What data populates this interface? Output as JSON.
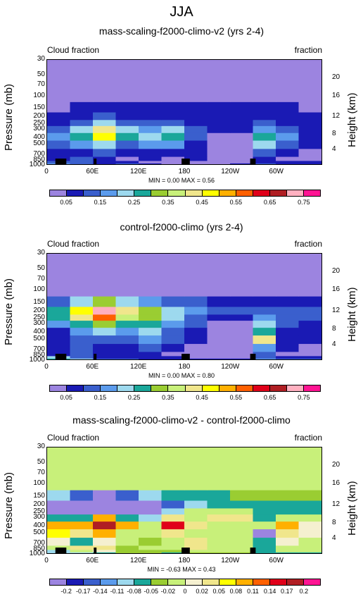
{
  "title": "JJA",
  "panels": [
    {
      "title": "mass-scaling-f2000-climo-v2 (yrs 2-4)",
      "left_label": "Cloud fraction",
      "right_label": "fraction",
      "minmax": "MIN =   0.00  MAX =   0.56",
      "colorbar_labels": [
        "0.05",
        "0.15",
        "0.25",
        "0.35",
        "0.45",
        "0.55",
        "0.65",
        "0.75"
      ]
    },
    {
      "title": "control-f2000-climo (yrs 2-4)",
      "left_label": "Cloud fraction",
      "right_label": "fraction",
      "minmax": "MIN =   0.00  MAX =   0.80",
      "colorbar_labels": [
        "0.05",
        "0.15",
        "0.25",
        "0.35",
        "0.45",
        "0.55",
        "0.65",
        "0.75"
      ]
    },
    {
      "title": "mass-scaling-f2000-climo-v2 - control-f2000-climo",
      "left_label": "Cloud fraction",
      "right_label": "fraction",
      "minmax": "MIN =  -0.63  MAX =   0.43",
      "colorbar_labels": [
        "-0.2",
        "-0.17",
        "-0.14",
        "-0.11",
        "-0.08",
        "-0.05",
        "-0.02",
        "0",
        "0.02",
        "0.05",
        "0.08",
        "0.11",
        "0.14",
        "0.17",
        "0.2"
      ]
    }
  ],
  "axes": {
    "ylabel_left": "Pressure (mb)",
    "ylabel_right": "Height (km)",
    "x_ticks": [
      "0",
      "60E",
      "120E",
      "180",
      "120W",
      "60W"
    ],
    "p_ticks": [
      "30",
      "50",
      "70",
      "100",
      "150",
      "200",
      "250",
      "300",
      "400",
      "500",
      "700",
      "850",
      "1000"
    ],
    "h_ticks": [
      "20",
      "16",
      "12",
      "8",
      "4"
    ]
  },
  "colors": {
    "seq": [
      "#9c84e0",
      "#1a1ab4",
      "#3a5fcd",
      "#5b9bec",
      "#9dd9ee",
      "#1aa79a",
      "#9acd32",
      "#c8f07a",
      "#f0e68c",
      "#ffff00",
      "#ffb000",
      "#ff6000",
      "#e0001a",
      "#b01e23",
      "#ffb0c0",
      "#ff1493"
    ],
    "diff": [
      "#9c84e0",
      "#1a1ab4",
      "#3a5fcd",
      "#5b9bec",
      "#9dd9ee",
      "#1aa79a",
      "#9acd32",
      "#c8f07a",
      "#f5f0d0",
      "#f0e68c",
      "#ffff00",
      "#ffb000",
      "#ff6000",
      "#e0001a",
      "#b01e23",
      "#ff1493"
    ]
  },
  "chart_data": [
    {
      "type": "heatmap",
      "title": "mass-scaling-f2000-climo-v2 (yrs 2-4)",
      "xlabel": "",
      "ylabel": "Pressure (mb)",
      "x": [
        0,
        30,
        60,
        90,
        120,
        150,
        180,
        210,
        240,
        270,
        300,
        330
      ],
      "p": [
        1000,
        925,
        850,
        700,
        500,
        400,
        300,
        250,
        200,
        150,
        100
      ],
      "values": [
        [
          0.2,
          0.15,
          0.1,
          0.12,
          0.08,
          0.05,
          0.05,
          0.05,
          0.08,
          0.15,
          0.1,
          0.1
        ],
        [
          0.15,
          0.15,
          0.1,
          0.08,
          0.05,
          0.05,
          0.05,
          0.05,
          0.05,
          0.1,
          0.1,
          0.1
        ],
        [
          0.1,
          0.12,
          0.1,
          0.05,
          0.1,
          0.05,
          0.1,
          0.05,
          0.05,
          0.1,
          0.05,
          0.05
        ],
        [
          0.1,
          0.1,
          0.12,
          0.1,
          0.1,
          0.1,
          0.08,
          0.05,
          0.05,
          0.15,
          0.1,
          0.05
        ],
        [
          0.15,
          0.2,
          0.25,
          0.15,
          0.2,
          0.2,
          0.1,
          0.05,
          0.05,
          0.25,
          0.15,
          0.1
        ],
        [
          0.2,
          0.3,
          0.5,
          0.3,
          0.25,
          0.3,
          0.15,
          0.05,
          0.05,
          0.3,
          0.2,
          0.1
        ],
        [
          0.15,
          0.25,
          0.45,
          0.25,
          0.2,
          0.25,
          0.15,
          0.1,
          0.1,
          0.2,
          0.15,
          0.1
        ],
        [
          0.1,
          0.15,
          0.25,
          0.15,
          0.15,
          0.15,
          0.1,
          0.1,
          0.1,
          0.15,
          0.1,
          0.1
        ],
        [
          0.08,
          0.1,
          0.15,
          0.1,
          0.1,
          0.1,
          0.1,
          0.1,
          0.1,
          0.1,
          0.1,
          0.08
        ],
        [
          0.05,
          0.08,
          0.1,
          0.08,
          0.08,
          0.08,
          0.08,
          0.08,
          0.08,
          0.08,
          0.08,
          0.05
        ],
        [
          0.02,
          0.02,
          0.02,
          0.02,
          0.02,
          0.02,
          0.02,
          0.02,
          0.02,
          0.02,
          0.02,
          0.02
        ]
      ],
      "zlim": [
        0,
        0.56
      ]
    },
    {
      "type": "heatmap",
      "title": "control-f2000-climo (yrs 2-4)",
      "xlabel": "",
      "ylabel": "Pressure (mb)",
      "x": [
        0,
        30,
        60,
        90,
        120,
        150,
        180,
        210,
        240,
        270,
        300,
        330
      ],
      "p": [
        1000,
        925,
        850,
        700,
        500,
        400,
        300,
        250,
        200,
        150,
        100
      ],
      "values": [
        [
          0.3,
          0.25,
          0.15,
          0.15,
          0.1,
          0.1,
          0.08,
          0.08,
          0.1,
          0.2,
          0.15,
          0.15
        ],
        [
          0.25,
          0.15,
          0.1,
          0.1,
          0.08,
          0.08,
          0.05,
          0.05,
          0.05,
          0.15,
          0.1,
          0.1
        ],
        [
          0.1,
          0.15,
          0.08,
          0.08,
          0.1,
          0.05,
          0.05,
          0.05,
          0.05,
          0.15,
          0.05,
          0.05
        ],
        [
          0.08,
          0.15,
          0.1,
          0.1,
          0.12,
          0.1,
          0.05,
          0.05,
          0.05,
          0.2,
          0.08,
          0.05
        ],
        [
          0.08,
          0.15,
          0.15,
          0.15,
          0.2,
          0.15,
          0.1,
          0.05,
          0.05,
          0.45,
          0.1,
          0.08
        ],
        [
          0.1,
          0.2,
          0.25,
          0.2,
          0.25,
          0.15,
          0.1,
          0.05,
          0.05,
          0.3,
          0.1,
          0.08
        ],
        [
          0.2,
          0.3,
          0.35,
          0.3,
          0.3,
          0.2,
          0.15,
          0.05,
          0.05,
          0.25,
          0.15,
          0.1
        ],
        [
          0.3,
          0.45,
          0.6,
          0.4,
          0.35,
          0.25,
          0.15,
          0.1,
          0.1,
          0.2,
          0.15,
          0.15
        ],
        [
          0.3,
          0.5,
          0.75,
          0.45,
          0.35,
          0.25,
          0.2,
          0.15,
          0.15,
          0.15,
          0.15,
          0.15
        ],
        [
          0.15,
          0.25,
          0.35,
          0.25,
          0.2,
          0.15,
          0.15,
          0.1,
          0.1,
          0.1,
          0.1,
          0.1
        ],
        [
          0.02,
          0.02,
          0.02,
          0.02,
          0.02,
          0.02,
          0.02,
          0.02,
          0.02,
          0.02,
          0.02,
          0.02
        ]
      ],
      "zlim": [
        0,
        0.8
      ]
    },
    {
      "type": "heatmap",
      "title": "mass-scaling-f2000-climo-v2 - control-f2000-climo",
      "xlabel": "",
      "ylabel": "Pressure (mb)",
      "x": [
        0,
        30,
        60,
        90,
        120,
        150,
        180,
        210,
        240,
        270,
        300,
        330
      ],
      "p": [
        1000,
        925,
        850,
        700,
        500,
        400,
        300,
        250,
        200,
        150,
        100
      ],
      "values": [
        [
          -0.1,
          -0.1,
          -0.05,
          -0.03,
          -0.02,
          -0.05,
          -0.03,
          -0.03,
          -0.02,
          -0.05,
          -0.05,
          -0.05
        ],
        [
          -0.1,
          0.0,
          0.02,
          -0.02,
          -0.03,
          -0.03,
          0.0,
          0.0,
          0.0,
          -0.05,
          0.0,
          0.0
        ],
        [
          0.0,
          0.05,
          0.05,
          -0.02,
          0.0,
          0.0,
          0.05,
          0.0,
          0.0,
          -0.05,
          0.0,
          0.0
        ],
        [
          0.02,
          -0.05,
          0.02,
          0.0,
          -0.02,
          0.0,
          0.03,
          0.0,
          0.0,
          -0.05,
          0.02,
          0.0
        ],
        [
          0.07,
          0.05,
          0.1,
          0.0,
          0.0,
          0.05,
          0.0,
          0.0,
          0.0,
          -0.2,
          0.05,
          0.02
        ],
        [
          0.1,
          0.1,
          0.2,
          0.1,
          0.0,
          0.15,
          0.05,
          0.0,
          0.0,
          0.0,
          0.1,
          0.02
        ],
        [
          -0.05,
          -0.05,
          0.1,
          -0.05,
          -0.1,
          0.05,
          0.0,
          0.05,
          0.05,
          -0.05,
          0.0,
          0.0
        ],
        [
          -0.2,
          -0.3,
          -0.35,
          -0.25,
          -0.2,
          -0.1,
          0.0,
          0.0,
          0.0,
          -0.05,
          -0.05,
          -0.05
        ],
        [
          -0.2,
          -0.4,
          -0.6,
          -0.35,
          -0.25,
          -0.15,
          -0.1,
          -0.05,
          -0.05,
          -0.05,
          -0.05,
          -0.05
        ],
        [
          -0.1,
          -0.15,
          -0.2,
          -0.15,
          -0.1,
          -0.05,
          -0.05,
          -0.05,
          -0.02,
          -0.02,
          -0.02,
          -0.02
        ],
        [
          0.0,
          0.0,
          0.0,
          0.0,
          0.0,
          0.0,
          0.0,
          0.0,
          0.0,
          0.0,
          0.0,
          0.0
        ]
      ],
      "zlim": [
        -0.63,
        0.43
      ]
    }
  ]
}
